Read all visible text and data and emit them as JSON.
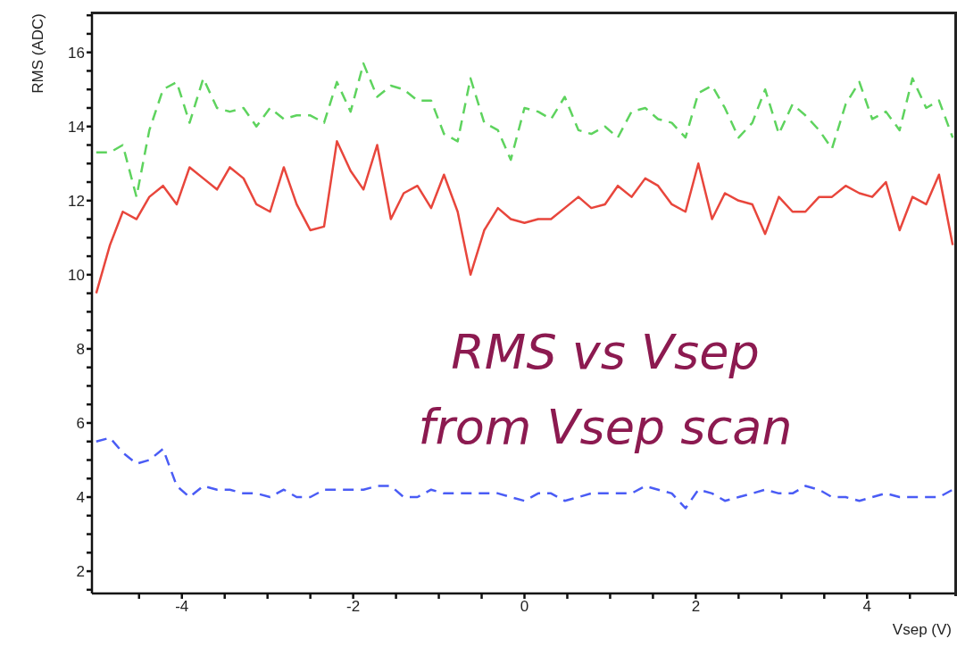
{
  "chart_data": {
    "type": "line",
    "xlabel": "Vsep (V)",
    "ylabel": "RMS (ADC)",
    "annotations": [
      "RMS vs Vsep",
      "from Vsep scan"
    ],
    "x": [
      -5,
      -4.84,
      -4.69,
      -4.53,
      -4.38,
      -4.22,
      -4.06,
      -3.91,
      -3.75,
      -3.59,
      -3.44,
      -3.28,
      -3.13,
      -2.97,
      -2.81,
      -2.66,
      -2.5,
      -2.34,
      -2.19,
      -2.03,
      -1.88,
      -1.72,
      -1.56,
      -1.41,
      -1.25,
      -1.09,
      -0.94,
      -0.78,
      -0.63,
      -0.47,
      -0.31,
      -0.16,
      0,
      0.16,
      0.31,
      0.47,
      0.63,
      0.78,
      0.94,
      1.09,
      1.25,
      1.41,
      1.56,
      1.72,
      1.88,
      2.03,
      2.19,
      2.34,
      2.5,
      2.66,
      2.81,
      2.97,
      3.13,
      3.28,
      3.44,
      3.59,
      3.75,
      3.91,
      4.06,
      4.22,
      4.38,
      4.53,
      4.69,
      4.84,
      5
    ],
    "series": [
      {
        "color": "#5ed35e",
        "line_style": "dashed",
        "values": [
          13.3,
          13.3,
          13.5,
          12.1,
          13.9,
          15.0,
          15.2,
          14.1,
          15.3,
          14.5,
          14.4,
          14.5,
          14.0,
          14.5,
          14.2,
          14.3,
          14.3,
          14.1,
          15.2,
          14.4,
          15.7,
          14.8,
          15.1,
          15.0,
          14.7,
          14.7,
          13.8,
          13.6,
          15.3,
          14.1,
          13.9,
          13.1,
          14.5,
          14.4,
          14.2,
          14.8,
          13.9,
          13.8,
          14.0,
          13.7,
          14.4,
          14.5,
          14.2,
          14.1,
          13.7,
          14.9,
          15.1,
          14.5,
          13.7,
          14.1,
          15.0,
          13.8,
          14.6,
          14.3,
          13.9,
          13.4,
          14.6,
          15.2,
          14.2,
          14.4,
          13.9,
          15.3,
          14.5,
          14.7,
          13.7
        ]
      },
      {
        "color": "#e8463c",
        "line_style": "solid",
        "values": [
          9.5,
          10.8,
          11.7,
          11.5,
          12.1,
          12.4,
          11.9,
          12.9,
          12.6,
          12.3,
          12.9,
          12.6,
          11.9,
          11.7,
          12.9,
          11.9,
          11.2,
          11.3,
          13.6,
          12.8,
          12.3,
          13.5,
          11.5,
          12.2,
          12.4,
          11.8,
          12.7,
          11.7,
          10.0,
          11.2,
          11.8,
          11.5,
          11.4,
          11.5,
          11.5,
          11.8,
          12.1,
          11.8,
          11.9,
          12.4,
          12.1,
          12.6,
          12.4,
          11.9,
          11.7,
          13.0,
          11.5,
          12.2,
          12.0,
          11.9,
          11.1,
          12.1,
          11.7,
          11.7,
          12.1,
          12.1,
          12.4,
          12.2,
          12.1,
          12.5,
          11.2,
          12.1,
          11.9,
          12.7,
          10.8
        ]
      },
      {
        "color": "#4a5cf5",
        "line_style": "dashed",
        "values": [
          5.5,
          5.6,
          5.2,
          4.9,
          5.0,
          5.3,
          4.3,
          4.0,
          4.3,
          4.2,
          4.2,
          4.1,
          4.1,
          4.0,
          4.2,
          4.0,
          4.0,
          4.2,
          4.2,
          4.2,
          4.2,
          4.3,
          4.3,
          4.0,
          4.0,
          4.2,
          4.1,
          4.1,
          4.1,
          4.1,
          4.1,
          4.0,
          3.9,
          4.1,
          4.1,
          3.9,
          4.0,
          4.1,
          4.1,
          4.1,
          4.1,
          4.3,
          4.2,
          4.1,
          3.7,
          4.2,
          4.1,
          3.9,
          4.0,
          4.1,
          4.2,
          4.1,
          4.1,
          4.3,
          4.2,
          4.0,
          4.0,
          3.9,
          4.0,
          4.1,
          4.0,
          4.0,
          4.0,
          4.0,
          4.2
        ]
      }
    ],
    "xlim": [
      -5.05,
      5.05
    ],
    "xticks": [
      {
        "value": -4.5,
        "label": null
      },
      -4,
      {
        "value": -3.5,
        "label": null
      },
      {
        "value": -3,
        "label": null
      },
      {
        "value": -2.5,
        "label": null
      },
      -2,
      {
        "value": -1.5,
        "label": null
      },
      {
        "value": -1,
        "label": null
      },
      {
        "value": -0.5,
        "label": null
      },
      0,
      {
        "value": 0.5,
        "label": null
      },
      {
        "value": 1,
        "label": null
      },
      {
        "value": 1.5,
        "label": null
      },
      2,
      {
        "value": 2.5,
        "label": null
      },
      {
        "value": 3,
        "label": null
      },
      {
        "value": 3.5,
        "label": null
      },
      4,
      {
        "value": 4.5,
        "label": null
      }
    ],
    "ylim": [
      1.4,
      17.1
    ],
    "yticks": [
      {
        "value": 1.5,
        "label": null
      },
      2,
      {
        "value": 2.5,
        "label": null
      },
      {
        "value": 3,
        "label": null
      },
      {
        "value": 3.5,
        "label": null
      },
      4,
      {
        "value": 4.5,
        "label": null
      },
      {
        "value": 5,
        "label": null
      },
      {
        "value": 5.5,
        "label": null
      },
      6,
      {
        "value": 6.5,
        "label": null
      },
      {
        "value": 7,
        "label": null
      },
      {
        "value": 7.5,
        "label": null
      },
      8,
      {
        "value": 8.5,
        "label": null
      },
      {
        "value": 9,
        "label": null
      },
      {
        "value": 9.5,
        "label": null
      },
      10,
      {
        "value": 10.5,
        "label": null
      },
      {
        "value": 11,
        "label": null
      },
      {
        "value": 11.5,
        "label": null
      },
      12,
      {
        "value": 12.5,
        "label": null
      },
      {
        "value": 13,
        "label": null
      },
      {
        "value": 13.5,
        "label": null
      },
      14,
      {
        "value": 14.5,
        "label": null
      },
      {
        "value": 15,
        "label": null
      },
      {
        "value": 15.5,
        "label": null
      },
      16,
      {
        "value": 16.5,
        "label": null
      },
      {
        "value": 17,
        "label": null
      }
    ],
    "grid": false,
    "legend": false,
    "marker": "none"
  }
}
